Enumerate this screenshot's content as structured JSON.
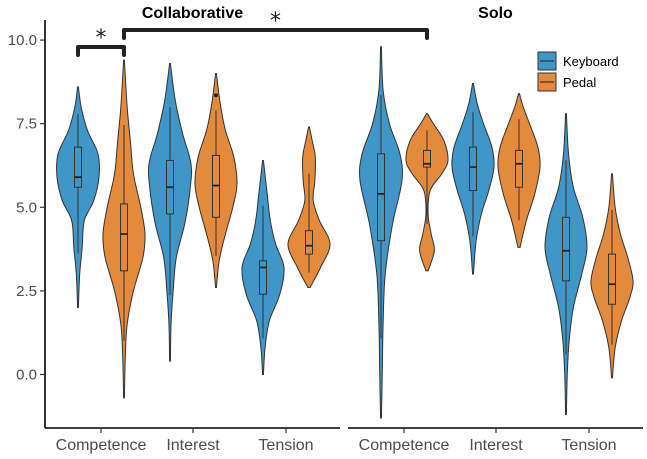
{
  "chart_data": {
    "type": "violin",
    "panels": [
      "Collaborative",
      "Solo"
    ],
    "categories": [
      "Competence",
      "Interest",
      "Tension"
    ],
    "ylim": [
      -1.6,
      10.6
    ],
    "yticks": [
      0.0,
      2.5,
      5.0,
      7.5,
      10.0
    ],
    "ytick_labels": [
      "0.0",
      "2.5",
      "5.0",
      "7.5",
      "10.0"
    ],
    "legend": {
      "position": "top-right",
      "entries": [
        "Keyboard",
        "Pedal"
      ]
    },
    "colors": {
      "Keyboard": "#3f96c7",
      "Pedal": "#e38a3d"
    },
    "series": [
      {
        "name": "Keyboard",
        "violins": [
          {
            "panel": "Collaborative",
            "category": "Competence",
            "min": 2.0,
            "max": 8.6,
            "q1": 5.6,
            "median": 5.9,
            "q3": 6.8,
            "profile": [
              [
                2.0,
                0.02
              ],
              [
                3.0,
                0.08
              ],
              [
                3.8,
                0.2
              ],
              [
                4.6,
                0.3
              ],
              [
                5.2,
                0.75
              ],
              [
                5.9,
                1.0
              ],
              [
                6.6,
                0.95
              ],
              [
                7.3,
                0.45
              ],
              [
                8.0,
                0.15
              ],
              [
                8.6,
                0.02
              ]
            ]
          },
          {
            "panel": "Collaborative",
            "category": "Interest",
            "min": 0.4,
            "max": 9.3,
            "q1": 4.8,
            "median": 5.6,
            "q3": 6.4,
            "profile": [
              [
                0.4,
                0.02
              ],
              [
                1.5,
                0.05
              ],
              [
                2.5,
                0.15
              ],
              [
                3.5,
                0.3
              ],
              [
                4.5,
                0.7
              ],
              [
                5.5,
                0.95
              ],
              [
                6.3,
                1.0
              ],
              [
                7.2,
                0.6
              ],
              [
                8.2,
                0.25
              ],
              [
                9.3,
                0.02
              ]
            ]
          },
          {
            "panel": "Collaborative",
            "category": "Tension",
            "min": 0.0,
            "max": 6.4,
            "q1": 2.4,
            "median": 3.2,
            "q3": 3.4,
            "profile": [
              [
                0.0,
                0.02
              ],
              [
                0.8,
                0.1
              ],
              [
                1.6,
                0.3
              ],
              [
                2.4,
                0.8
              ],
              [
                3.2,
                1.0
              ],
              [
                3.9,
                0.6
              ],
              [
                4.6,
                0.35
              ],
              [
                5.4,
                0.2
              ],
              [
                6.4,
                0.02
              ]
            ]
          },
          {
            "panel": "Solo",
            "category": "Competence",
            "min": -1.3,
            "max": 9.8,
            "q1": 4.0,
            "median": 5.4,
            "q3": 6.6,
            "profile": [
              [
                -1.3,
                0.02
              ],
              [
                0.0,
                0.06
              ],
              [
                1.5,
                0.1
              ],
              [
                3.0,
                0.2
              ],
              [
                4.5,
                0.55
              ],
              [
                5.8,
                1.0
              ],
              [
                6.6,
                0.9
              ],
              [
                7.5,
                0.4
              ],
              [
                8.5,
                0.1
              ],
              [
                9.8,
                0.02
              ]
            ]
          },
          {
            "panel": "Solo",
            "category": "Interest",
            "min": 3.0,
            "max": 8.7,
            "q1": 5.5,
            "median": 6.2,
            "q3": 6.8,
            "profile": [
              [
                3.0,
                0.02
              ],
              [
                4.0,
                0.15
              ],
              [
                4.8,
                0.4
              ],
              [
                5.5,
                0.75
              ],
              [
                6.2,
                1.0
              ],
              [
                6.8,
                0.9
              ],
              [
                7.5,
                0.5
              ],
              [
                8.1,
                0.2
              ],
              [
                8.7,
                0.02
              ]
            ]
          },
          {
            "panel": "Solo",
            "category": "Tension",
            "min": -1.2,
            "max": 7.8,
            "q1": 2.8,
            "median": 3.7,
            "q3": 4.7,
            "profile": [
              [
                -1.2,
                0.02
              ],
              [
                0.0,
                0.06
              ],
              [
                1.0,
                0.15
              ],
              [
                2.0,
                0.35
              ],
              [
                3.0,
                0.75
              ],
              [
                3.8,
                1.0
              ],
              [
                4.7,
                0.8
              ],
              [
                5.6,
                0.35
              ],
              [
                6.6,
                0.12
              ],
              [
                7.8,
                0.02
              ]
            ]
          }
        ]
      },
      {
        "name": "Pedal",
        "violins": [
          {
            "panel": "Collaborative",
            "category": "Competence",
            "min": -0.7,
            "max": 9.4,
            "q1": 3.1,
            "median": 4.2,
            "q3": 5.1,
            "profile": [
              [
                -0.7,
                0.02
              ],
              [
                0.5,
                0.06
              ],
              [
                1.5,
                0.15
              ],
              [
                2.5,
                0.45
              ],
              [
                3.5,
                0.9
              ],
              [
                4.2,
                1.0
              ],
              [
                5.0,
                0.8
              ],
              [
                6.0,
                0.45
              ],
              [
                7.0,
                0.3
              ],
              [
                8.0,
                0.15
              ],
              [
                9.4,
                0.02
              ]
            ]
          },
          {
            "panel": "Collaborative",
            "category": "Interest",
            "min": 2.6,
            "max": 9.0,
            "q1": 4.7,
            "median": 5.65,
            "q3": 6.55,
            "profile": [
              [
                2.6,
                0.02
              ],
              [
                3.4,
                0.15
              ],
              [
                4.2,
                0.45
              ],
              [
                5.0,
                0.8
              ],
              [
                5.7,
                1.0
              ],
              [
                6.5,
                0.85
              ],
              [
                7.3,
                0.45
              ],
              [
                8.1,
                0.2
              ],
              [
                9.0,
                0.02
              ]
            ]
          },
          {
            "panel": "Collaborative",
            "category": "Tension",
            "min": 2.6,
            "max": 7.4,
            "q1": 3.6,
            "median": 3.85,
            "q3": 4.3,
            "profile": [
              [
                2.6,
                0.05
              ],
              [
                3.2,
                0.55
              ],
              [
                3.9,
                1.0
              ],
              [
                4.6,
                0.5
              ],
              [
                5.2,
                0.2
              ],
              [
                5.8,
                0.28
              ],
              [
                6.5,
                0.3
              ],
              [
                7.0,
                0.15
              ],
              [
                7.4,
                0.02
              ]
            ]
          },
          {
            "panel": "Solo",
            "category": "Competence",
            "min": 3.1,
            "max": 7.8,
            "q1": 6.2,
            "median": 6.3,
            "q3": 6.7,
            "profile": [
              [
                3.1,
                0.05
              ],
              [
                3.7,
                0.35
              ],
              [
                4.2,
                0.2
              ],
              [
                4.8,
                0.05
              ],
              [
                5.5,
                0.15
              ],
              [
                6.0,
                0.7
              ],
              [
                6.4,
                1.0
              ],
              [
                7.0,
                0.8
              ],
              [
                7.5,
                0.3
              ],
              [
                7.8,
                0.02
              ]
            ]
          },
          {
            "panel": "Solo",
            "category": "Interest",
            "min": 3.8,
            "max": 8.4,
            "q1": 5.6,
            "median": 6.3,
            "q3": 6.7,
            "profile": [
              [
                3.8,
                0.05
              ],
              [
                4.6,
                0.35
              ],
              [
                5.4,
                0.75
              ],
              [
                6.2,
                1.0
              ],
              [
                6.8,
                0.9
              ],
              [
                7.5,
                0.5
              ],
              [
                8.0,
                0.2
              ],
              [
                8.4,
                0.02
              ]
            ]
          },
          {
            "panel": "Solo",
            "category": "Tension",
            "min": -0.1,
            "max": 6.0,
            "q1": 2.1,
            "median": 2.7,
            "q3": 3.6,
            "profile": [
              [
                -0.1,
                0.02
              ],
              [
                0.8,
                0.15
              ],
              [
                1.6,
                0.45
              ],
              [
                2.3,
                0.85
              ],
              [
                2.8,
                1.0
              ],
              [
                3.5,
                0.75
              ],
              [
                4.2,
                0.4
              ],
              [
                5.0,
                0.15
              ],
              [
                6.0,
                0.02
              ]
            ]
          }
        ]
      }
    ],
    "outliers": [
      {
        "series": "Pedal",
        "panel": "Collaborative",
        "category": "Interest",
        "y": 8.35
      }
    ],
    "annotations": [
      {
        "text": "*",
        "from": {
          "panel": "Collaborative",
          "category": "Competence",
          "series": "Keyboard"
        },
        "to": {
          "panel": "Collaborative",
          "category": "Competence",
          "series": "Pedal"
        }
      },
      {
        "text": "*",
        "from": {
          "panel": "Collaborative",
          "category": "Competence",
          "series": "Pedal"
        },
        "to": {
          "panel": "Solo",
          "category": "Competence",
          "series": "Pedal"
        }
      }
    ]
  }
}
